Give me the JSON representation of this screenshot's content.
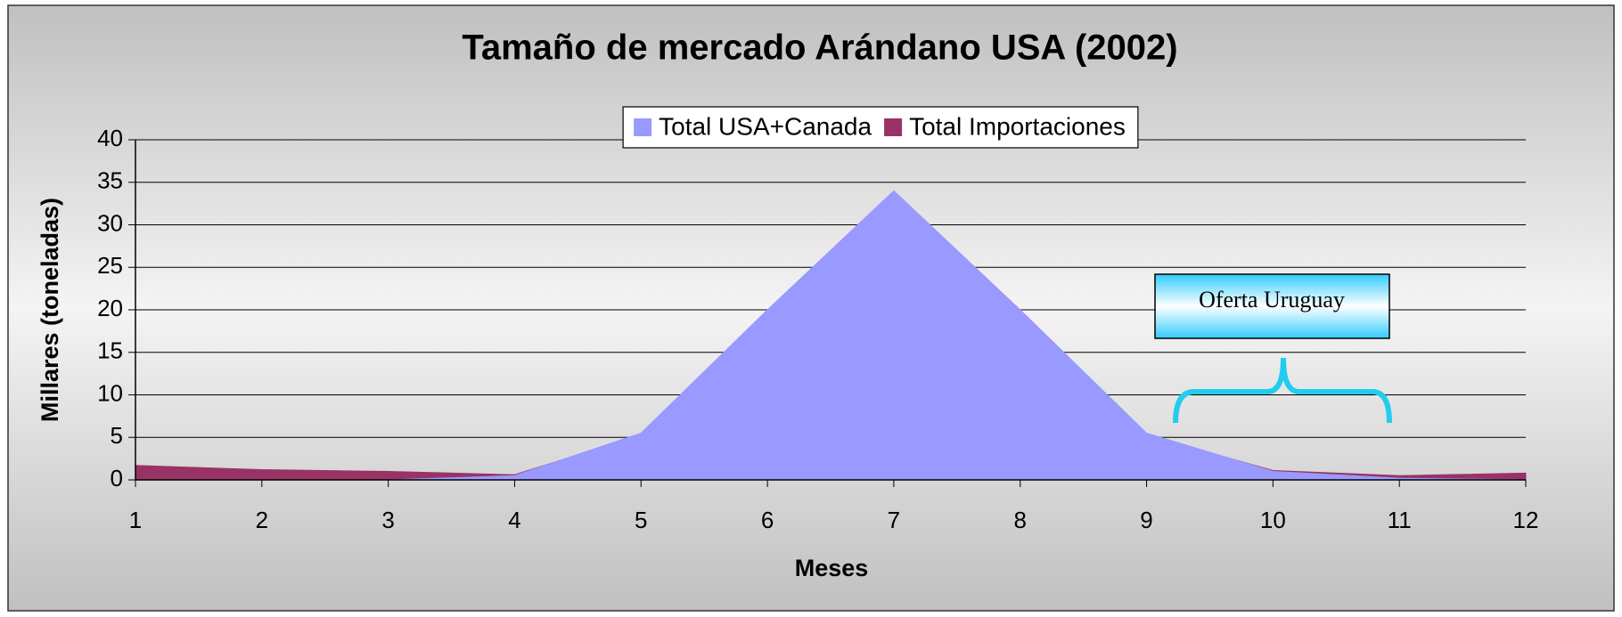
{
  "chart_data": {
    "type": "area",
    "title": "Tamaño de mercado Arándano USA (2002)",
    "x_label": "Meses",
    "y_label": "Millares (toneladas)",
    "x": [
      1,
      2,
      3,
      4,
      5,
      6,
      7,
      8,
      9,
      10,
      11,
      12
    ],
    "series": [
      {
        "name": "Total USA+Canada",
        "color": "#9999ff",
        "values": [
          0,
          0,
          0,
          0.5,
          5.5,
          20,
          34,
          20,
          5.5,
          1,
          0.2,
          0
        ]
      },
      {
        "name": "Total Importaciones",
        "color": "#993366",
        "values": [
          1.7,
          1.2,
          1.0,
          0.6,
          5.3,
          0.5,
          0.5,
          0.5,
          5.3,
          1.1,
          0.5,
          0.8
        ]
      }
    ],
    "xlim": [
      1,
      12
    ],
    "xticks": [
      1,
      2,
      3,
      4,
      5,
      6,
      7,
      8,
      9,
      10,
      11,
      12
    ],
    "ylim": [
      0,
      40
    ],
    "yticks": [
      0,
      5,
      10,
      15,
      20,
      25,
      30,
      35,
      40
    ],
    "grid": true,
    "legend": "top",
    "annotations": [
      "Oferta Uruguay"
    ]
  }
}
